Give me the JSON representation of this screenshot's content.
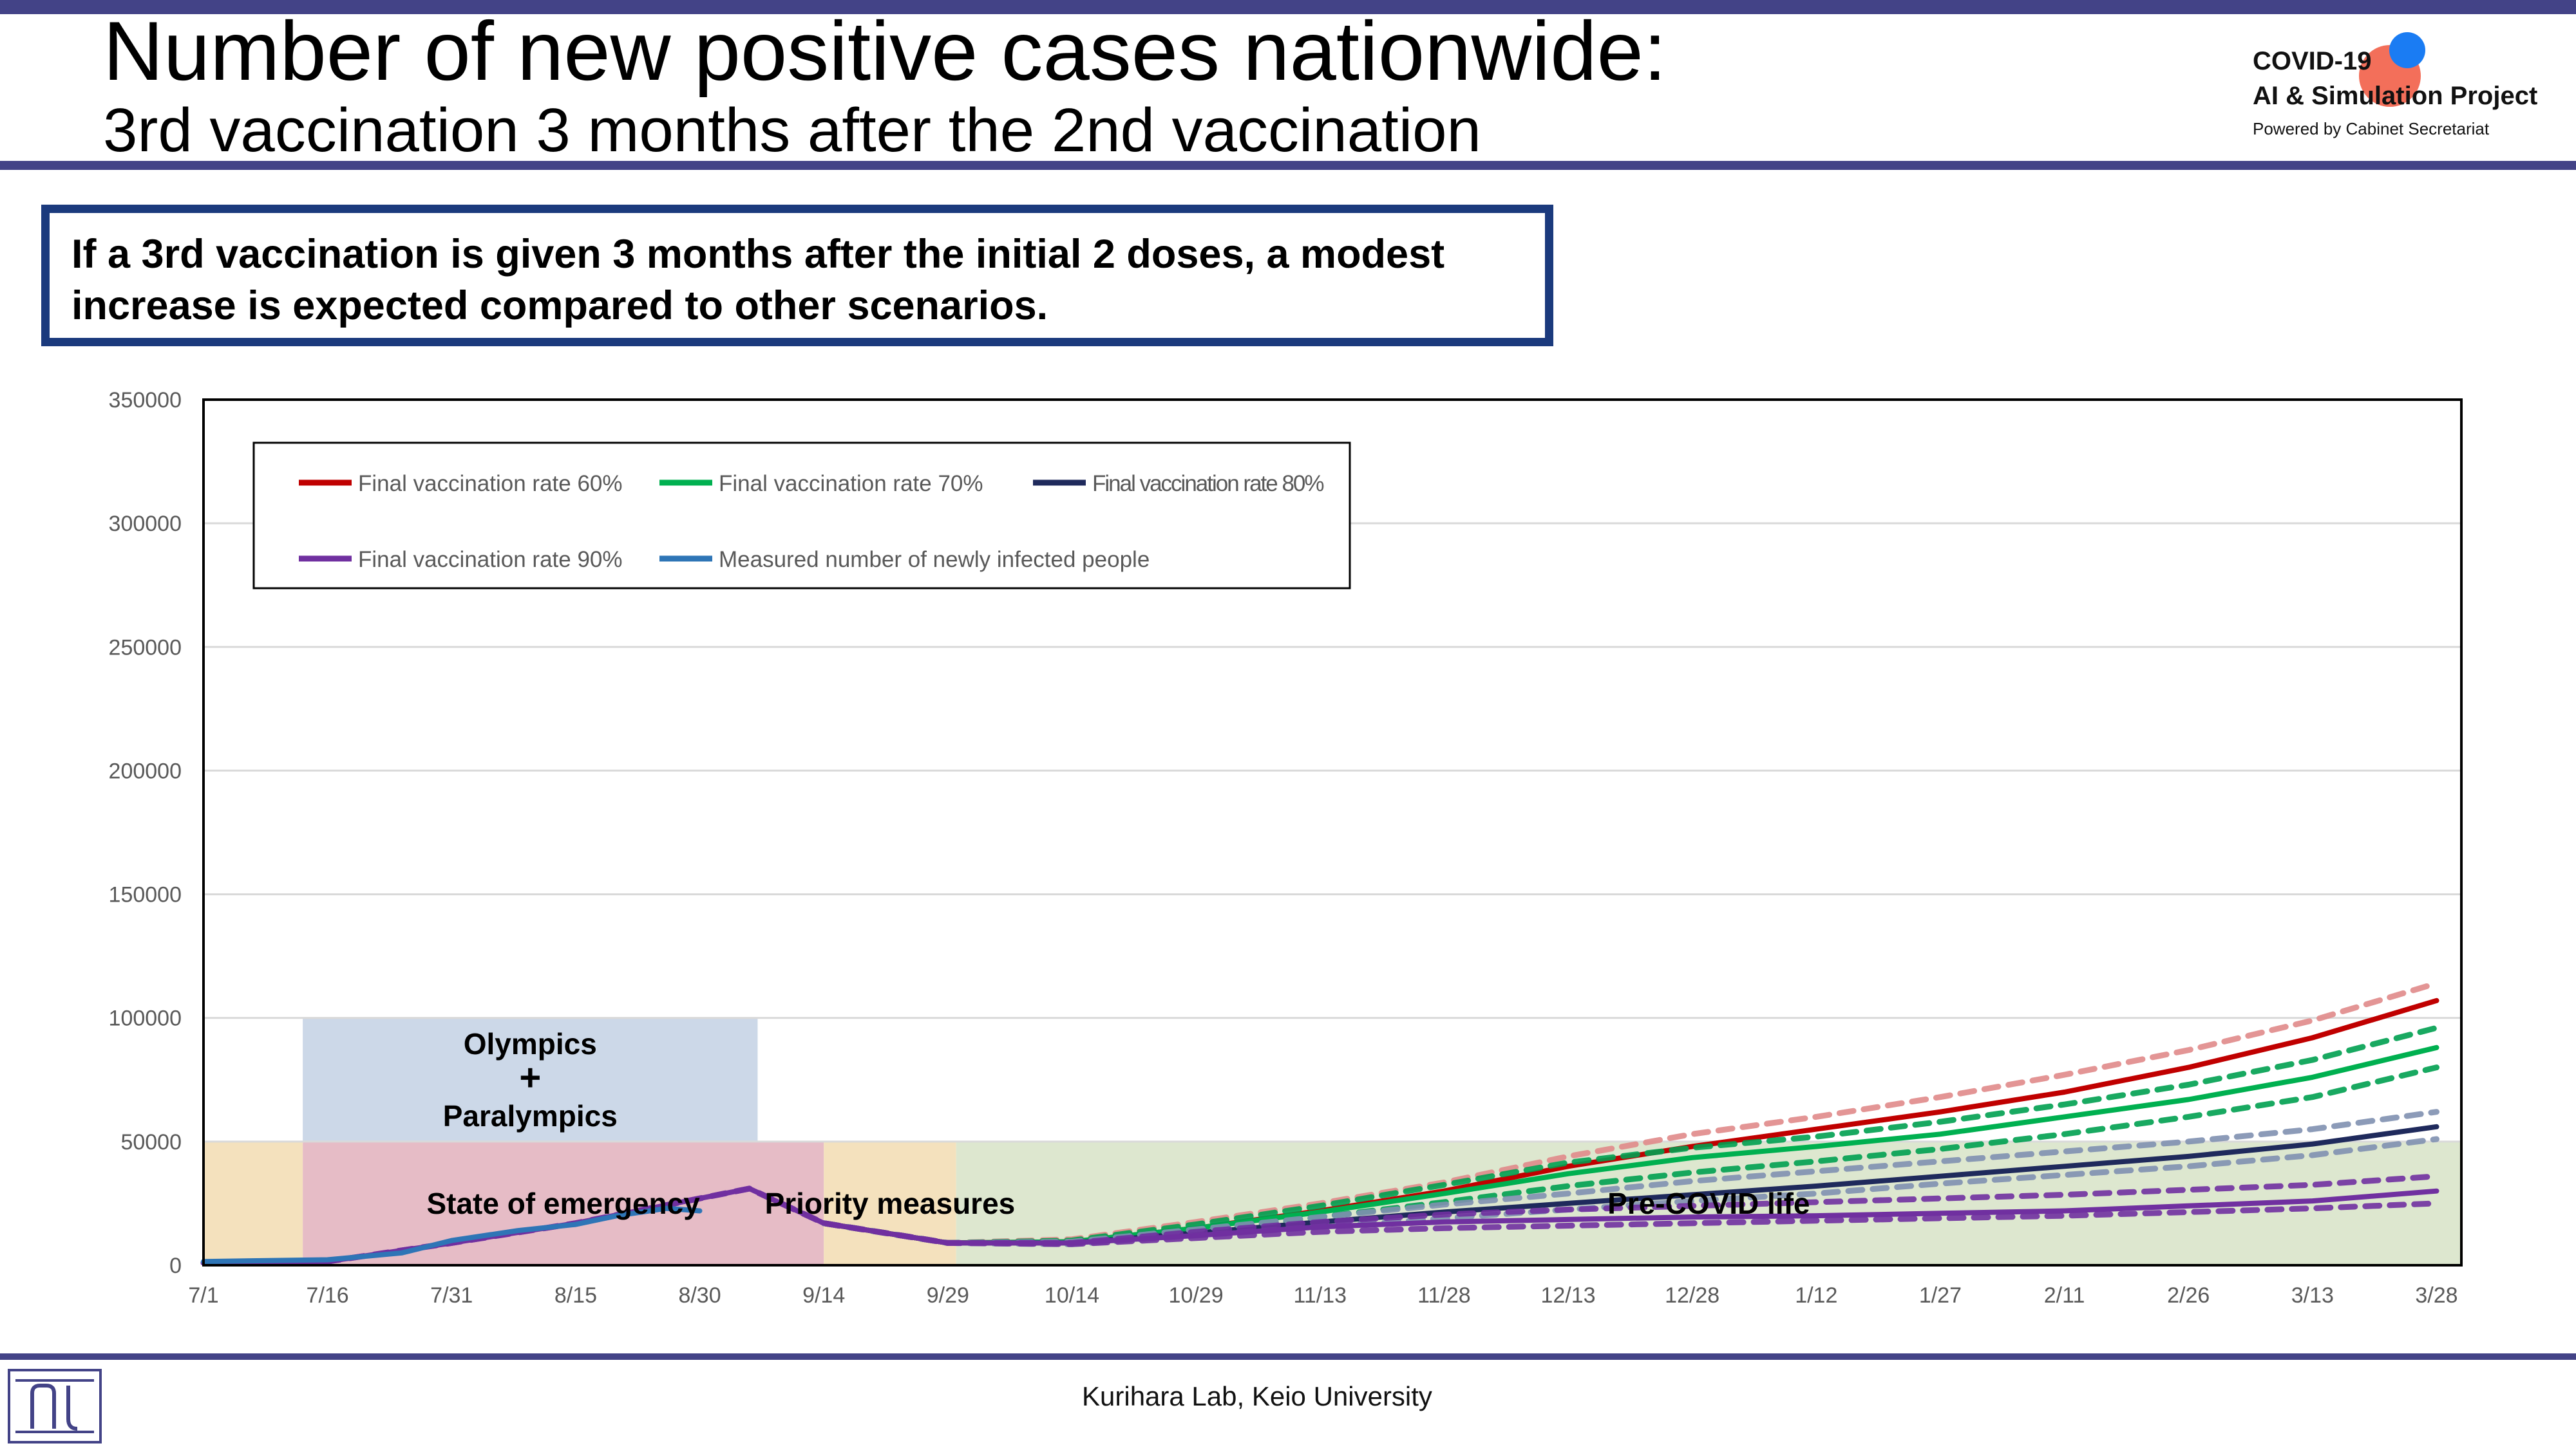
{
  "header": {
    "title": "Number of new positive cases nationwide:",
    "subtitle": "3rd vaccination 3 months after the 2nd vaccination"
  },
  "logo": {
    "line1": "COVID-19",
    "line2": "AI & Simulation Project",
    "line3": "Powered by Cabinet Secretariat"
  },
  "callout": {
    "line1": "If a 3rd vaccination is given 3 months after the initial 2 doses, a modest",
    "line2": "increase is expected compared to other scenarios."
  },
  "footer": {
    "text": "Kurihara Lab, Keio University"
  },
  "chart_data": {
    "type": "line",
    "x_ticks": [
      "7/1",
      "7/16",
      "7/31",
      "8/15",
      "8/30",
      "9/14",
      "9/29",
      "10/14",
      "10/29",
      "11/13",
      "11/28",
      "12/13",
      "12/28",
      "1/12",
      "1/27",
      "2/11",
      "2/26",
      "3/13",
      "3/28"
    ],
    "ylim": [
      0,
      350000
    ],
    "y_ticks": [
      "0",
      "50000",
      "100000",
      "150000",
      "200000",
      "250000",
      "300000",
      "350000"
    ],
    "grid": "horizontal",
    "legend_position": "top-left",
    "annotations": [
      {
        "label_lines": [
          "Olympics",
          "+",
          "Paralympics"
        ],
        "x_start": "7/13",
        "x_end": "9/6",
        "y_start": 50000,
        "y_end": 100000,
        "color": "#ccd8e8"
      },
      {
        "label_lines": [
          "State of emergency"
        ],
        "x_start": "7/13",
        "x_end": "9/14",
        "y_start": 0,
        "y_end": 50000,
        "color": "#e6bcc6"
      },
      {
        "label_lines": [
          "Priority measures"
        ],
        "x_start": "9/14",
        "x_end": "9/30",
        "y_start": 0,
        "y_end": 50000,
        "color": "#f4e1bd"
      },
      {
        "label_lines": [
          ""
        ],
        "x_start": "7/1",
        "x_end": "7/13",
        "y_start": 0,
        "y_end": 50000,
        "color": "#f4e1bd"
      },
      {
        "label_lines": [
          "Pre-COVID life"
        ],
        "x_start": "9/30",
        "x_end": "3/31",
        "y_start": 0,
        "y_end": 50000,
        "color": "#dde7cf"
      }
    ],
    "series": [
      {
        "name": "Final vaccination rate 60%",
        "color": "#c00000",
        "style": "solid",
        "points": [
          [
            "9/14",
            17000
          ],
          [
            "9/29",
            9000
          ],
          [
            "10/14",
            9500
          ],
          [
            "10/29",
            15000
          ],
          [
            "11/13",
            22000
          ],
          [
            "11/28",
            30000
          ],
          [
            "12/13",
            40000
          ],
          [
            "12/28",
            48000
          ],
          [
            "1/12",
            55000
          ],
          [
            "1/27",
            62000
          ],
          [
            "2/11",
            70000
          ],
          [
            "2/26",
            80000
          ],
          [
            "3/13",
            92000
          ],
          [
            "3/28",
            107000
          ]
        ]
      },
      {
        "name": "",
        "color": "#e08a8a",
        "style": "dashed",
        "points": [
          [
            "9/14",
            17000
          ],
          [
            "9/29",
            9000
          ],
          [
            "10/14",
            10500
          ],
          [
            "10/29",
            17500
          ],
          [
            "11/13",
            25000
          ],
          [
            "11/28",
            33500
          ],
          [
            "12/13",
            44000
          ],
          [
            "12/28",
            53000
          ],
          [
            "1/12",
            60000
          ],
          [
            "1/27",
            68000
          ],
          [
            "2/11",
            77000
          ],
          [
            "2/26",
            87000
          ],
          [
            "3/13",
            99000
          ],
          [
            "3/28",
            114000
          ]
        ]
      },
      {
        "name": "Final vaccination rate 70%",
        "color": "#00b050",
        "style": "solid",
        "points": [
          [
            "9/14",
            17000
          ],
          [
            "9/29",
            9000
          ],
          [
            "10/14",
            9500
          ],
          [
            "10/29",
            15000
          ],
          [
            "11/13",
            21500
          ],
          [
            "11/28",
            29000
          ],
          [
            "12/13",
            37000
          ],
          [
            "12/28",
            43500
          ],
          [
            "1/12",
            48000
          ],
          [
            "1/27",
            53000
          ],
          [
            "2/11",
            60000
          ],
          [
            "2/26",
            67000
          ],
          [
            "3/13",
            76000
          ],
          [
            "3/28",
            88000
          ]
        ]
      },
      {
        "name": "",
        "color": "#00a050",
        "style": "dashed",
        "points": [
          [
            "9/14",
            17000
          ],
          [
            "9/29",
            9000
          ],
          [
            "10/14",
            10000
          ],
          [
            "10/29",
            16500
          ],
          [
            "11/13",
            24000
          ],
          [
            "11/28",
            32500
          ],
          [
            "12/13",
            41500
          ],
          [
            "12/28",
            47500
          ],
          [
            "1/12",
            52000
          ],
          [
            "1/27",
            58000
          ],
          [
            "2/11",
            65000
          ],
          [
            "2/26",
            73000
          ],
          [
            "3/13",
            83000
          ],
          [
            "3/28",
            96000
          ]
        ]
      },
      {
        "name": "",
        "color": "#00a050",
        "style": "dashed",
        "points": [
          [
            "9/14",
            17000
          ],
          [
            "9/29",
            9000
          ],
          [
            "10/14",
            9000
          ],
          [
            "10/29",
            13500
          ],
          [
            "11/13",
            19500
          ],
          [
            "11/28",
            25500
          ],
          [
            "12/13",
            32000
          ],
          [
            "12/28",
            37500
          ],
          [
            "1/12",
            42000
          ],
          [
            "1/27",
            47000
          ],
          [
            "2/11",
            53000
          ],
          [
            "2/26",
            60000
          ],
          [
            "3/13",
            68000
          ],
          [
            "3/28",
            80000
          ]
        ]
      },
      {
        "name": "Final vaccination rate 80%",
        "color": "#1f2a5c",
        "style": "solid",
        "points": [
          [
            "9/14",
            17000
          ],
          [
            "9/29",
            9000
          ],
          [
            "10/14",
            9000
          ],
          [
            "10/29",
            13000
          ],
          [
            "11/13",
            17500
          ],
          [
            "11/28",
            21500
          ],
          [
            "12/13",
            25000
          ],
          [
            "12/28",
            28500
          ],
          [
            "1/12",
            32000
          ],
          [
            "1/27",
            36000
          ],
          [
            "2/11",
            40000
          ],
          [
            "2/26",
            44000
          ],
          [
            "3/13",
            49000
          ],
          [
            "3/28",
            56000
          ]
        ]
      },
      {
        "name": "",
        "color": "#8090b0",
        "style": "dashed",
        "points": [
          [
            "9/14",
            17000
          ],
          [
            "9/29",
            9000
          ],
          [
            "10/14",
            9500
          ],
          [
            "10/29",
            14500
          ],
          [
            "11/13",
            19500
          ],
          [
            "11/28",
            24500
          ],
          [
            "12/13",
            29000
          ],
          [
            "12/28",
            34000
          ],
          [
            "1/12",
            38000
          ],
          [
            "1/27",
            42000
          ],
          [
            "2/11",
            46000
          ],
          [
            "2/26",
            50000
          ],
          [
            "3/13",
            55000
          ],
          [
            "3/28",
            62000
          ]
        ]
      },
      {
        "name": "",
        "color": "#8090b0",
        "style": "dashed",
        "points": [
          [
            "9/14",
            17000
          ],
          [
            "9/29",
            9000
          ],
          [
            "10/14",
            8500
          ],
          [
            "10/29",
            12000
          ],
          [
            "11/13",
            15500
          ],
          [
            "11/28",
            19000
          ],
          [
            "12/13",
            22500
          ],
          [
            "12/28",
            26000
          ],
          [
            "1/12",
            29000
          ],
          [
            "1/27",
            33000
          ],
          [
            "2/11",
            36500
          ],
          [
            "2/26",
            40000
          ],
          [
            "3/13",
            44500
          ],
          [
            "3/28",
            51000
          ]
        ]
      },
      {
        "name": "Final vaccination rate 90%",
        "color": "#7030a0",
        "style": "solid",
        "points": [
          [
            "7/1",
            1000
          ],
          [
            "7/16",
            1500
          ],
          [
            "7/31",
            9000
          ],
          [
            "8/15",
            17000
          ],
          [
            "8/30",
            27000
          ],
          [
            "9/5",
            31000
          ],
          [
            "9/14",
            17000
          ],
          [
            "9/29",
            9000
          ],
          [
            "10/14",
            9000
          ],
          [
            "10/29",
            12000
          ],
          [
            "11/13",
            15500
          ],
          [
            "11/28",
            17500
          ],
          [
            "12/13",
            18500
          ],
          [
            "12/28",
            19500
          ],
          [
            "1/12",
            20000
          ],
          [
            "1/27",
            21000
          ],
          [
            "2/11",
            22000
          ],
          [
            "2/26",
            24000
          ],
          [
            "3/13",
            26000
          ],
          [
            "3/28",
            30000
          ]
        ]
      },
      {
        "name": "",
        "color": "#7030a0",
        "style": "dashed",
        "points": [
          [
            "7/1",
            1000
          ],
          [
            "7/16",
            1500
          ],
          [
            "7/31",
            9000
          ],
          [
            "8/15",
            17000
          ],
          [
            "8/30",
            27000
          ],
          [
            "9/5",
            31000
          ],
          [
            "9/14",
            17000
          ],
          [
            "9/29",
            9000
          ],
          [
            "10/14",
            9000
          ],
          [
            "10/29",
            13500
          ],
          [
            "11/13",
            17500
          ],
          [
            "11/28",
            20500
          ],
          [
            "12/13",
            22500
          ],
          [
            "12/28",
            24000
          ],
          [
            "1/12",
            25500
          ],
          [
            "1/27",
            27000
          ],
          [
            "2/11",
            28500
          ],
          [
            "2/26",
            30500
          ],
          [
            "3/13",
            32500
          ],
          [
            "3/28",
            36000
          ]
        ]
      },
      {
        "name": "",
        "color": "#7030a0",
        "style": "dashed",
        "points": [
          [
            "7/1",
            1000
          ],
          [
            "7/16",
            1500
          ],
          [
            "7/31",
            9000
          ],
          [
            "8/15",
            17000
          ],
          [
            "8/30",
            27000
          ],
          [
            "9/5",
            31000
          ],
          [
            "9/14",
            17000
          ],
          [
            "9/29",
            9000
          ],
          [
            "10/14",
            8500
          ],
          [
            "10/29",
            11000
          ],
          [
            "11/13",
            13500
          ],
          [
            "11/28",
            15000
          ],
          [
            "12/13",
            16000
          ],
          [
            "12/28",
            17000
          ],
          [
            "1/12",
            18000
          ],
          [
            "1/27",
            19000
          ],
          [
            "2/11",
            20000
          ],
          [
            "2/26",
            21500
          ],
          [
            "3/13",
            23000
          ],
          [
            "3/28",
            25000
          ]
        ]
      },
      {
        "name": "Measured number of newly infected people",
        "color": "#2e75b6",
        "style": "solid",
        "points": [
          [
            "7/1",
            1500
          ],
          [
            "7/16",
            2200
          ],
          [
            "7/25",
            5000
          ],
          [
            "7/31",
            10000
          ],
          [
            "8/8",
            14000
          ],
          [
            "8/15",
            16500
          ],
          [
            "8/20",
            20000
          ],
          [
            "8/26",
            23000
          ],
          [
            "8/30",
            22000
          ]
        ]
      }
    ]
  }
}
